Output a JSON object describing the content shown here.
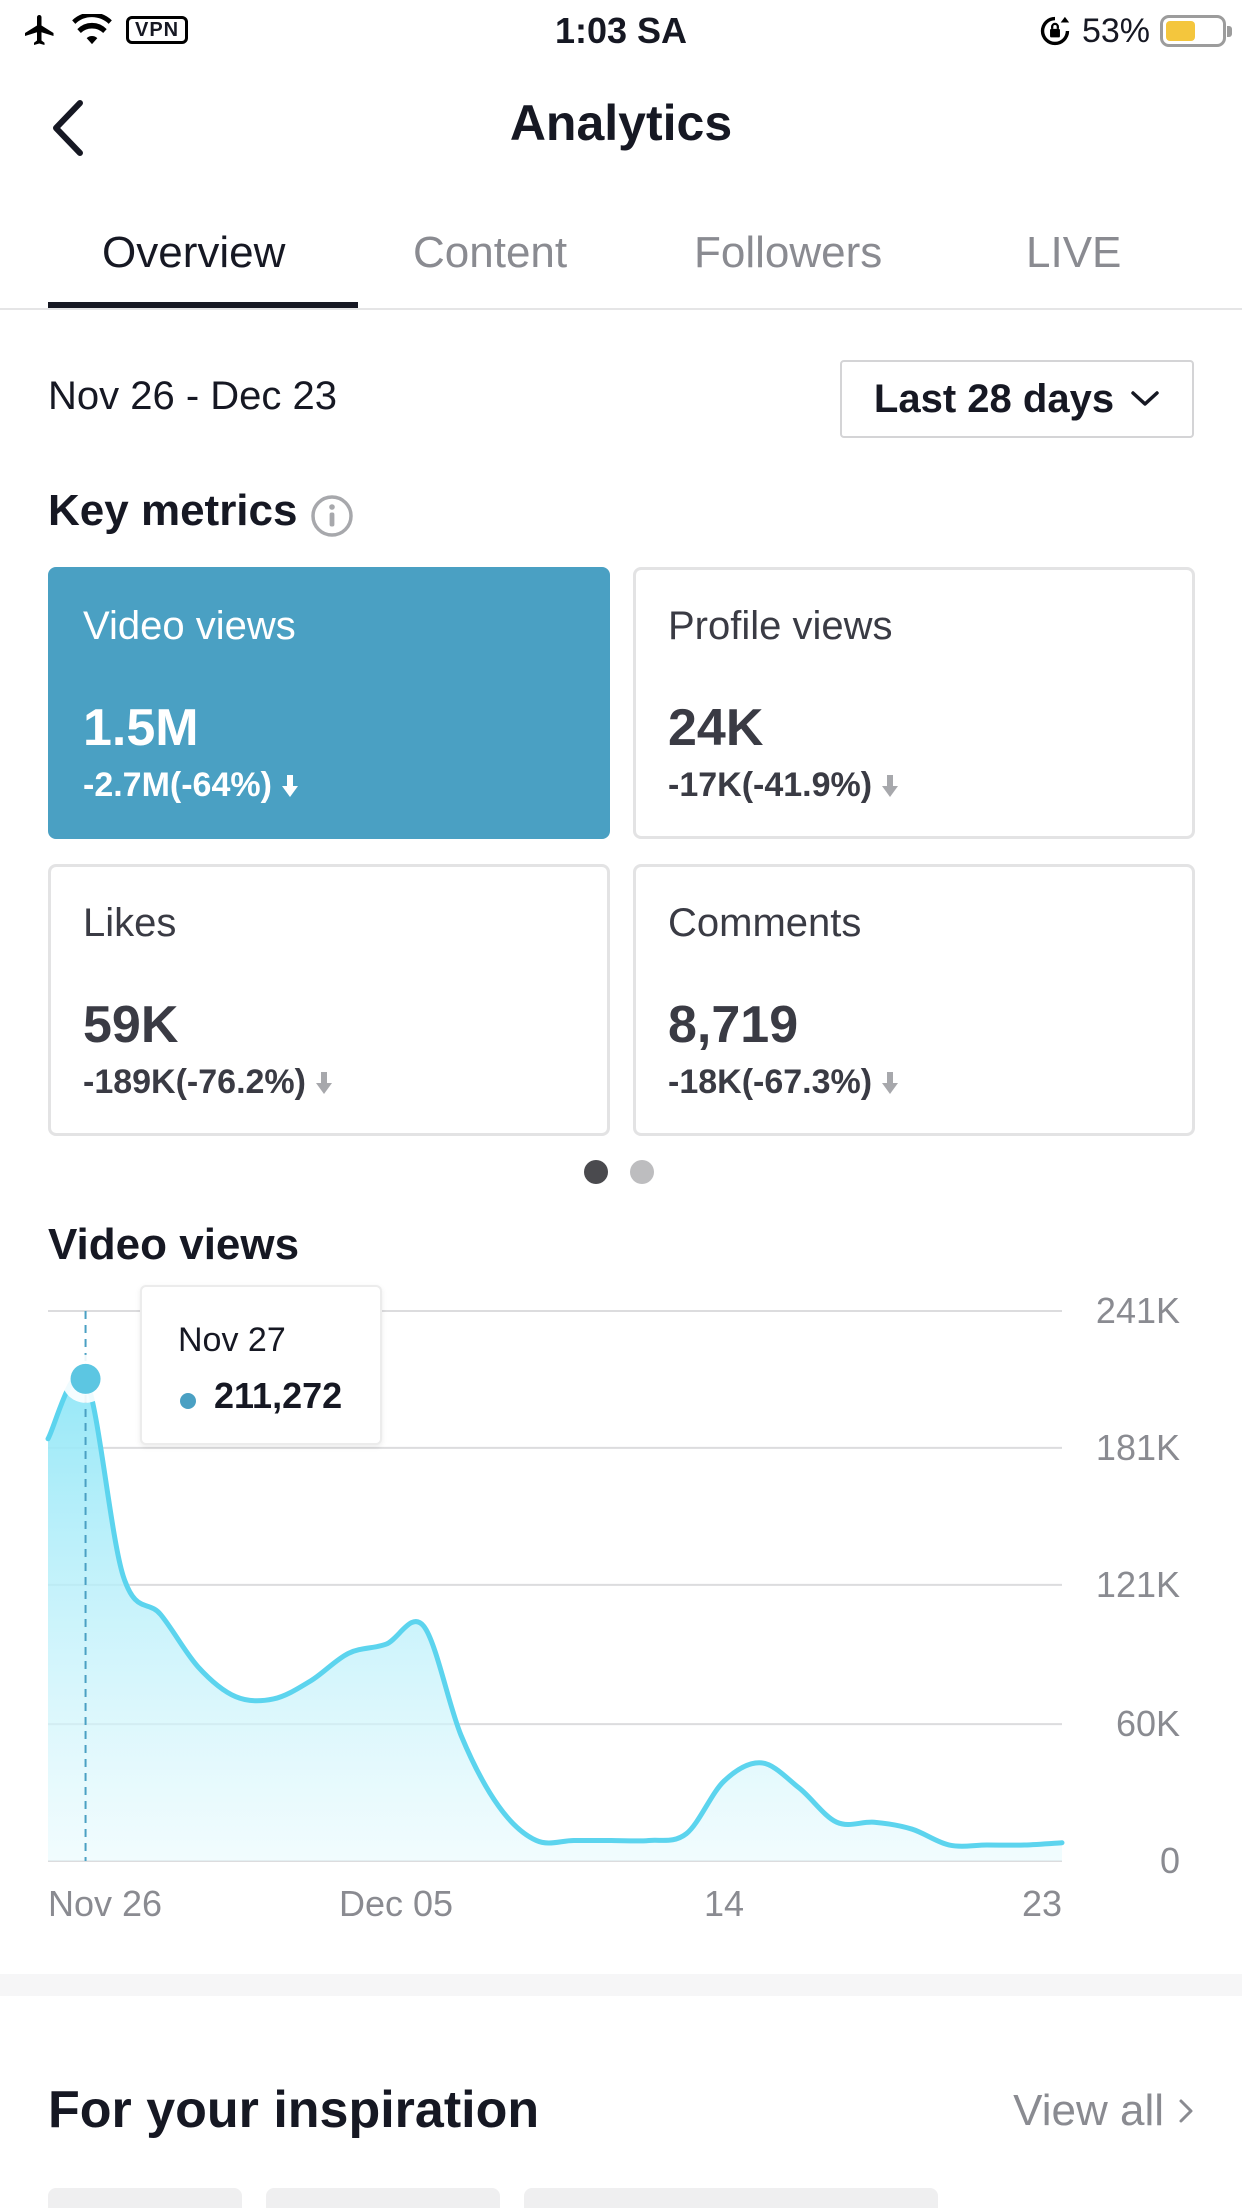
{
  "status_bar": {
    "vpn": "VPN",
    "time": "1:03 SA",
    "battery": "53%",
    "battery_level": 0.53
  },
  "header": {
    "title": "Analytics"
  },
  "tabs": [
    {
      "label": "Overview",
      "active": true
    },
    {
      "label": "Content",
      "active": false
    },
    {
      "label": "Followers",
      "active": false
    },
    {
      "label": "LIVE",
      "active": false
    }
  ],
  "date_range": "Nov 26 - Dec 23",
  "period": {
    "selected": "Last 28 days"
  },
  "key_metrics": {
    "title": "Key metrics",
    "cards": [
      {
        "label": "Video views",
        "value": "1.5M",
        "change": "-2.7M(-64%)",
        "active": true
      },
      {
        "label": "Profile views",
        "value": "24K",
        "change": "-17K(-41.9%)",
        "active": false
      },
      {
        "label": "Likes",
        "value": "59K",
        "change": "-189K(-76.2%)",
        "active": false
      },
      {
        "label": "Comments",
        "value": "8,719",
        "change": "-18K(-67.3%)",
        "active": false
      }
    ],
    "page_count": 2,
    "current_page": 1
  },
  "chart_section_title": "Video views",
  "chart_data": {
    "type": "area",
    "title": "Video views",
    "x_tick_labels": [
      "Nov 26",
      "Dec 05",
      "14",
      "23"
    ],
    "y_tick_labels": [
      "241K",
      "181K",
      "121K",
      "60K",
      "0"
    ],
    "ylim": [
      0,
      241000
    ],
    "y_ticks": [
      0,
      60000,
      121000,
      181000,
      241000
    ],
    "x_day_count": 28,
    "x_tick_days": [
      0,
      9,
      18,
      27
    ],
    "values": [
      185000,
      211272,
      125000,
      108000,
      85000,
      72000,
      71000,
      79000,
      91000,
      95000,
      103000,
      55000,
      24000,
      9000,
      9000,
      9000,
      9000,
      12000,
      35000,
      43000,
      32000,
      17000,
      17000,
      14000,
      7000,
      7000,
      7000,
      8000
    ],
    "highlight": {
      "date": "Nov 27",
      "value": "211,272",
      "index": 1
    },
    "grid": true,
    "color": "#5cd4ee"
  },
  "inspiration": {
    "title": "For your inspiration",
    "view_all": "View all"
  }
}
